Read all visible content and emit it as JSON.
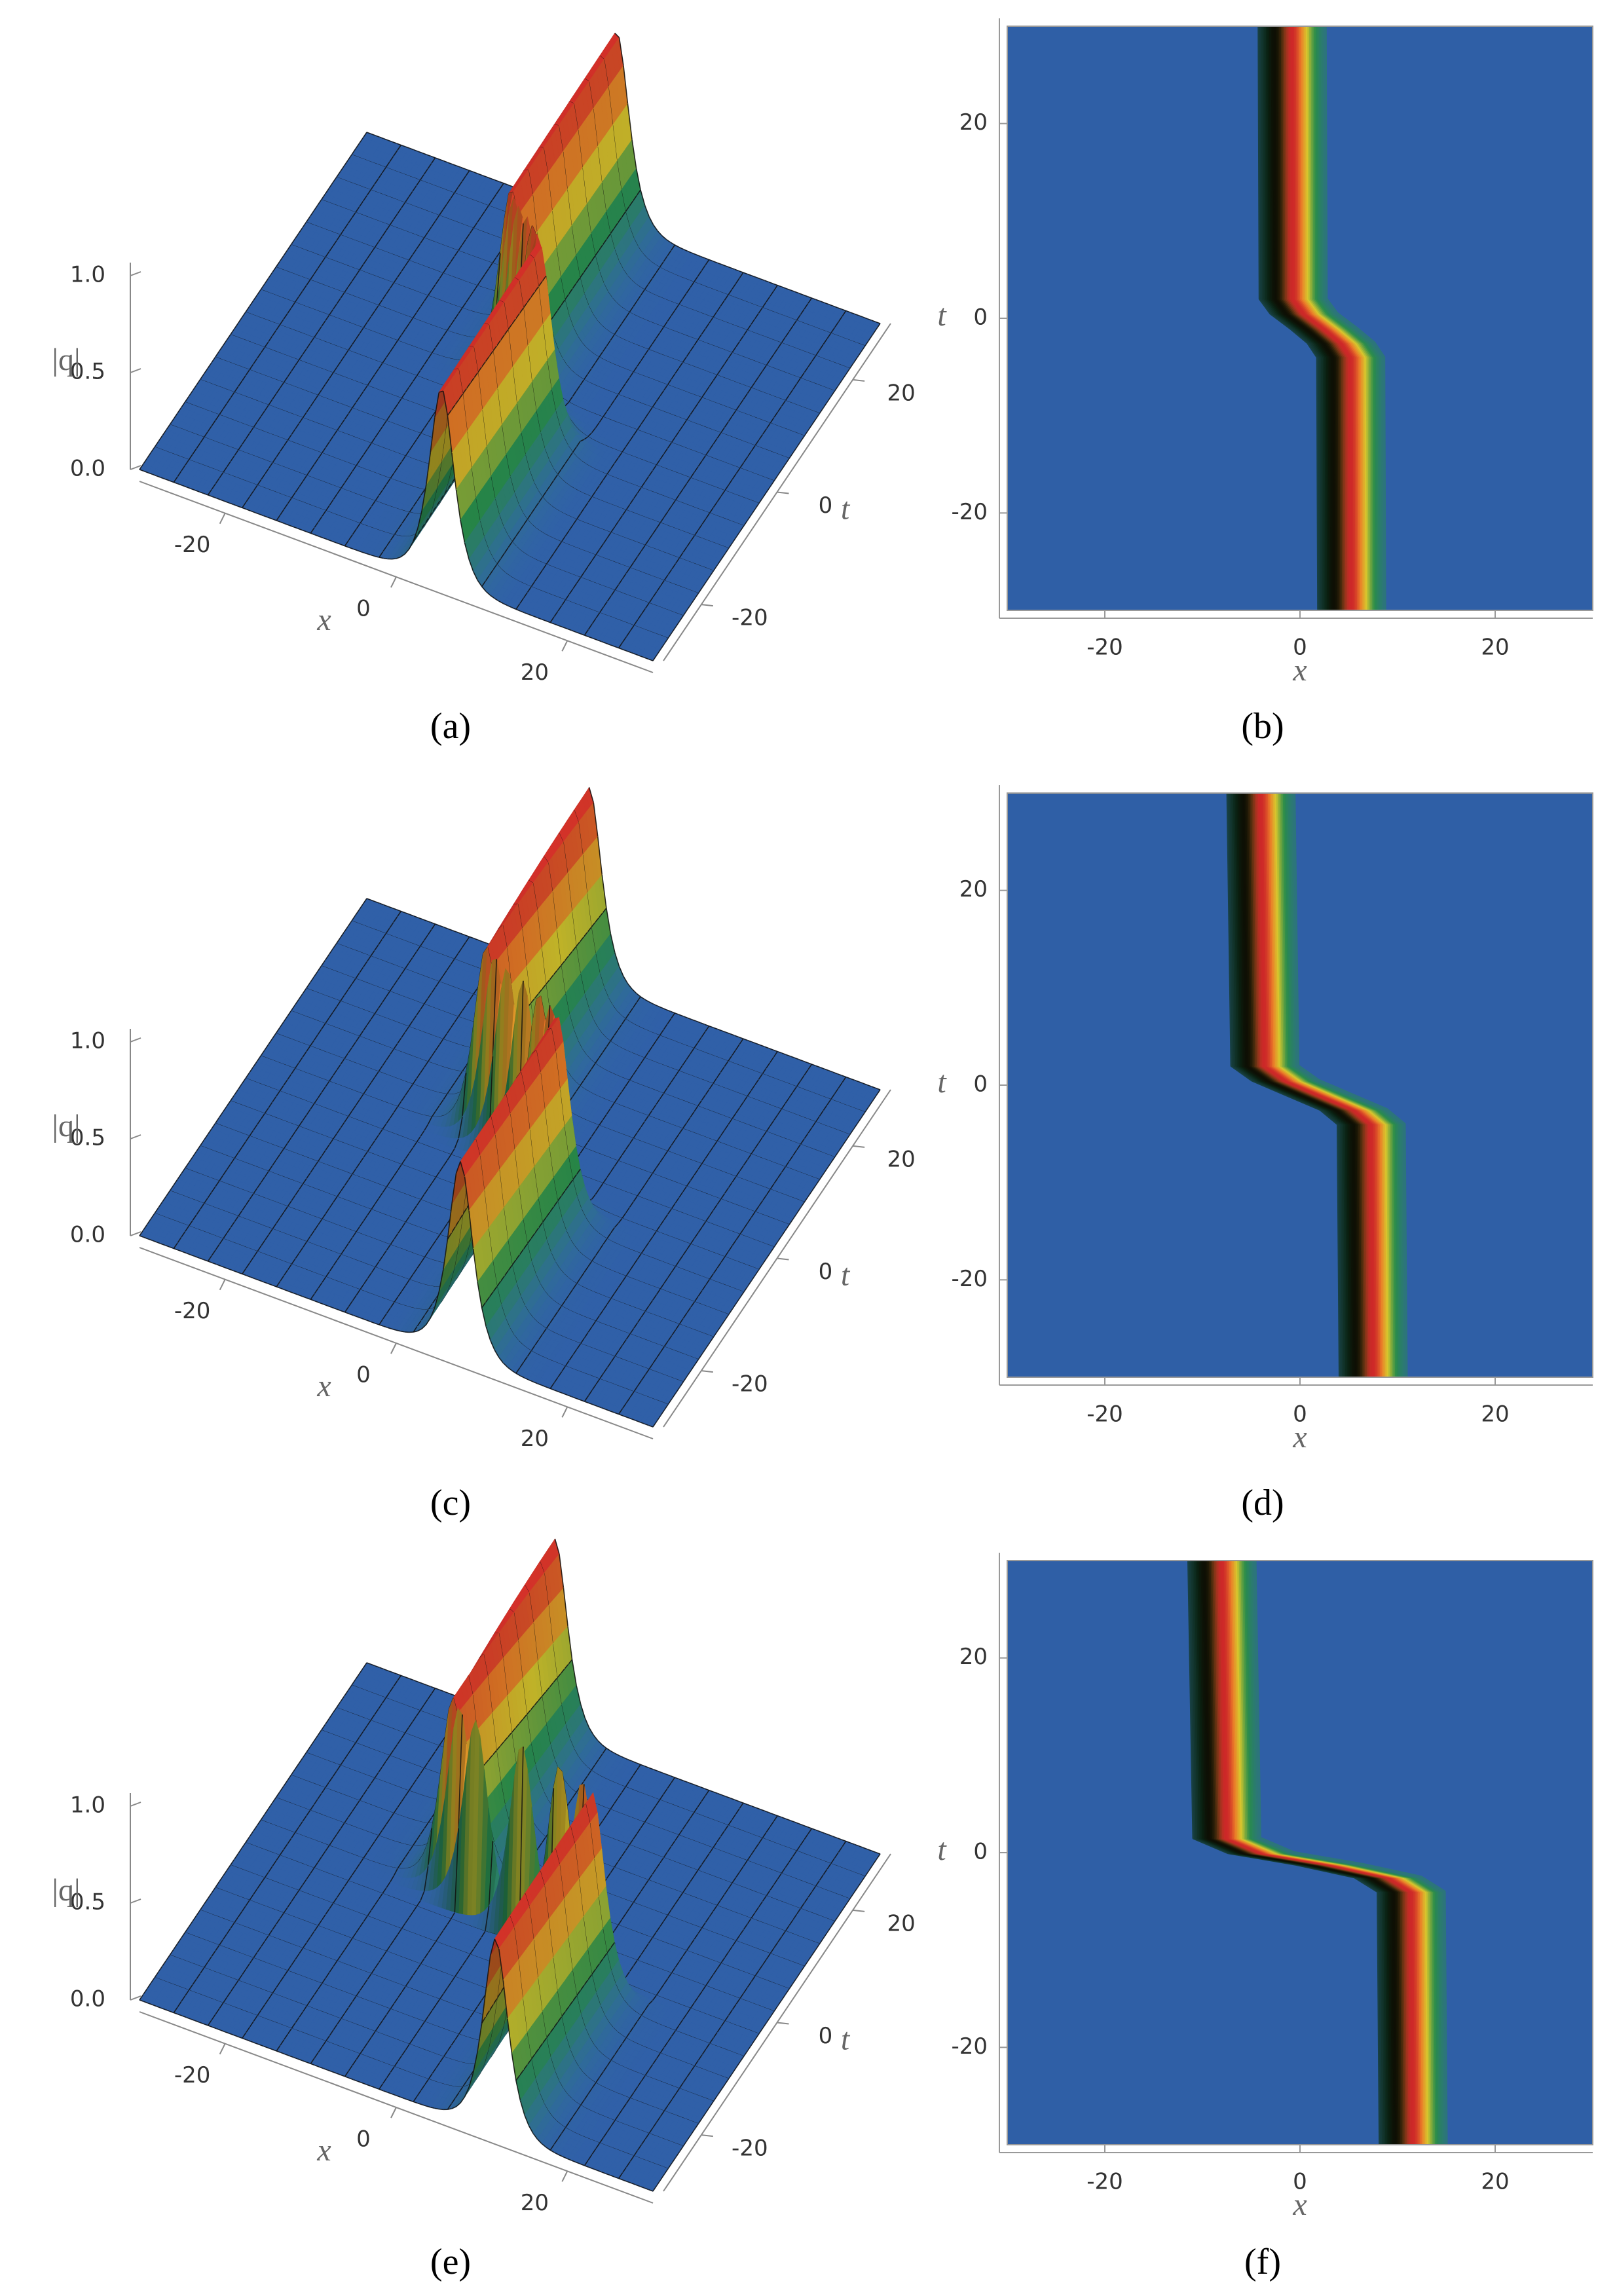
{
  "chart_data": [
    {
      "type": "surface3d",
      "label": "(a)",
      "xlabel": "x",
      "ylabel": "t",
      "zlabel": "|q|",
      "xlim": [
        -30,
        30
      ],
      "ylim": [
        -30,
        30
      ],
      "zlim": [
        0,
        1
      ],
      "xticks": [
        -20,
        0,
        20
      ],
      "yticks": [
        -20,
        0,
        20
      ],
      "zticks": [
        {
          "value": 0,
          "label": "0.0"
        },
        {
          "value": 0.5,
          "label": "0.5"
        },
        {
          "value": 1,
          "label": "1.0"
        }
      ],
      "ridge": {
        "t": [
          -30,
          -4,
          -2.5,
          -1,
          0.5,
          2,
          30
        ],
        "x": [
          5.3,
          5.2,
          4.2,
          2.4,
          0.4,
          -0.7,
          -0.8
        ],
        "q": [
          1,
          1,
          1,
          1,
          1,
          1,
          1
        ]
      }
    },
    {
      "type": "density",
      "label": "(b)",
      "xlabel": "x",
      "ylabel": "t",
      "xlim": [
        -30,
        30
      ],
      "ylim": [
        -30,
        30
      ],
      "xticks": [
        -20,
        0,
        20
      ],
      "yticks": [
        -20,
        0,
        20
      ],
      "ridge": {
        "t": [
          -30,
          -4,
          -2.5,
          -1,
          0.5,
          2,
          30
        ],
        "x": [
          5.3,
          5.2,
          4.2,
          2.4,
          0.4,
          -0.7,
          -0.8
        ],
        "q": [
          1,
          1,
          1,
          1,
          1,
          1,
          1
        ]
      }
    },
    {
      "type": "surface3d",
      "label": "(c)",
      "xlabel": "x",
      "ylabel": "t",
      "zlabel": "|q|",
      "xlim": [
        -30,
        30
      ],
      "ylim": [
        -30,
        30
      ],
      "zlim": [
        0,
        1
      ],
      "xticks": [
        -20,
        0,
        20
      ],
      "yticks": [
        -20,
        0,
        20
      ],
      "zticks": [
        {
          "value": 0,
          "label": "0.0"
        },
        {
          "value": 0.5,
          "label": "0.5"
        },
        {
          "value": 1,
          "label": "1.0"
        }
      ],
      "ridge": {
        "t": [
          -30,
          -4,
          -2.5,
          -1,
          0.5,
          2,
          30
        ],
        "x": [
          7.5,
          7.3,
          5.5,
          2,
          -1.5,
          -3.6,
          -4
        ],
        "q": [
          1,
          1,
          1,
          1,
          1,
          1,
          1
        ]
      }
    },
    {
      "type": "density",
      "label": "(d)",
      "xlabel": "x",
      "ylabel": "t",
      "xlim": [
        -30,
        30
      ],
      "ylim": [
        -30,
        30
      ],
      "xticks": [
        -20,
        0,
        20
      ],
      "yticks": [
        -20,
        0,
        20
      ],
      "ridge": {
        "t": [
          -30,
          -4,
          -2.5,
          -1,
          0.5,
          2,
          30
        ],
        "x": [
          7.5,
          7.3,
          5.5,
          2,
          -1.5,
          -3.6,
          -4
        ],
        "q": [
          1,
          1,
          1,
          1,
          1,
          1,
          1
        ]
      }
    },
    {
      "type": "surface3d",
      "label": "(e)",
      "xlabel": "x",
      "ylabel": "t",
      "zlabel": "|q|",
      "xlim": [
        -30,
        30
      ],
      "ylim": [
        -30,
        30
      ],
      "zlim": [
        0,
        1
      ],
      "xticks": [
        -20,
        0,
        20
      ],
      "yticks": [
        -20,
        0,
        20
      ],
      "zticks": [
        {
          "value": 0,
          "label": "0.0"
        },
        {
          "value": 0.5,
          "label": "0.5"
        },
        {
          "value": 1,
          "label": "1.0"
        }
      ],
      "ridge": {
        "t": [
          -30,
          -4,
          -2.5,
          -1.2,
          0,
          1.5,
          30
        ],
        "x": [
          11.6,
          11.4,
          9,
          3,
          -4,
          -7.5,
          -8
        ],
        "q": [
          1,
          1,
          1,
          1,
          1,
          1,
          1
        ]
      }
    },
    {
      "type": "density",
      "label": "(f)",
      "xlabel": "x",
      "ylabel": "t",
      "xlim": [
        -30,
        30
      ],
      "ylim": [
        -30,
        30
      ],
      "xticks": [
        -20,
        0,
        20
      ],
      "yticks": [
        -20,
        0,
        20
      ],
      "ridge": {
        "t": [
          -30,
          -4,
          -2.5,
          -1.2,
          0,
          1.5,
          30
        ],
        "x": [
          11.6,
          11.4,
          9,
          3,
          -4,
          -7.5,
          -8
        ],
        "q": [
          1,
          1,
          1,
          1,
          1,
          1,
          1
        ]
      }
    }
  ]
}
